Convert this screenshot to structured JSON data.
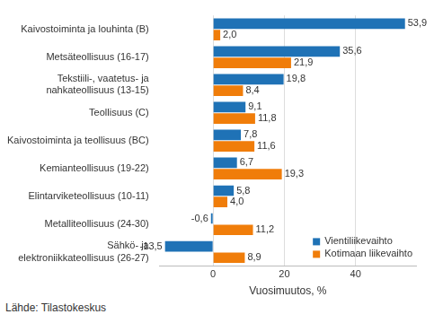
{
  "chart_data": {
    "type": "bar",
    "orientation": "horizontal",
    "categories": [
      "Kaivostoiminta ja louhinta (B)",
      "Metsäteollisuus (16-17)",
      "Tekstiili-, vaatetus- ja\nnahkateollisuus (13-15)",
      "Teollisuus (C)",
      "Kaivostoiminta ja teollisuus (BC)",
      "Kemianteollisuus (19-22)",
      "Elintarviketeollisuus (10-11)",
      "Metalliteollisuus (24-30)",
      "Sähkö- ja\nelektroniikkateollisuus (26-27)"
    ],
    "series": [
      {
        "name": "Vientiliikevaihto",
        "color": "#1f72b6",
        "values": [
          53.9,
          35.6,
          19.8,
          9.1,
          7.8,
          6.7,
          5.8,
          -0.6,
          -13.5
        ],
        "value_labels": [
          "53,9",
          "35,6",
          "19,8",
          "9,1",
          "7,8",
          "6,7",
          "5,8",
          "-0,6",
          "-13,5"
        ]
      },
      {
        "name": "Kotimaan liikevaihto",
        "color": "#f07d0a",
        "values": [
          2.0,
          21.9,
          8.4,
          11.8,
          11.6,
          19.3,
          4.0,
          11.2,
          8.9
        ],
        "value_labels": [
          "2,0",
          "21,9",
          "8,4",
          "11,8",
          "11,6",
          "19,3",
          "4,0",
          "11,2",
          "8,9"
        ]
      }
    ],
    "x_label": "Vuosimuutos, %",
    "xlim": [
      -15,
      57
    ],
    "xticks": [
      0,
      20,
      40
    ],
    "grid": true,
    "legend": "lower right",
    "data_labels": true,
    "source": "Lähde: Tilastokeskus"
  }
}
